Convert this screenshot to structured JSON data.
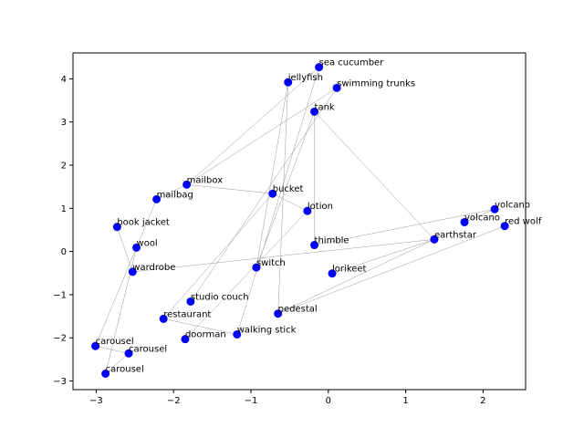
{
  "chart_data": {
    "type": "scatter",
    "title": "",
    "xlabel": "",
    "ylabel": "",
    "xlim": [
      -3.3,
      2.55
    ],
    "ylim": [
      -3.2,
      4.6
    ],
    "xticks": [
      -3,
      -2,
      -1,
      0,
      1,
      2
    ],
    "yticks": [
      -3,
      -2,
      -1,
      0,
      1,
      2,
      3,
      4
    ],
    "xtick_labels": [
      "−3",
      "−2",
      "−1",
      "0",
      "1",
      "2"
    ],
    "ytick_labels": [
      "−3",
      "−2",
      "−1",
      "0",
      "1",
      "2",
      "3",
      "4"
    ],
    "point_color": "#0000ff",
    "edge_color": "#999999",
    "points": [
      {
        "label": "sea cucumber",
        "x": -0.12,
        "y": 4.27
      },
      {
        "label": "jellyfish",
        "x": -0.52,
        "y": 3.92
      },
      {
        "label": "swimming trunks",
        "x": 0.11,
        "y": 3.79
      },
      {
        "label": "tank",
        "x": -0.18,
        "y": 3.24
      },
      {
        "label": "mailbox",
        "x": -1.83,
        "y": 1.55
      },
      {
        "label": "mailbag",
        "x": -2.22,
        "y": 1.21
      },
      {
        "label": "bucket",
        "x": -0.72,
        "y": 1.34
      },
      {
        "label": "lotion",
        "x": -0.27,
        "y": 0.94
      },
      {
        "label": "volcano",
        "x": 2.15,
        "y": 0.98
      },
      {
        "label": "volcano",
        "x": 1.76,
        "y": 0.68
      },
      {
        "label": "red wolf",
        "x": 2.28,
        "y": 0.59
      },
      {
        "label": "book jacket",
        "x": -2.73,
        "y": 0.57
      },
      {
        "label": "earthstar",
        "x": 1.37,
        "y": 0.28
      },
      {
        "label": "wool",
        "x": -2.48,
        "y": 0.09
      },
      {
        "label": "thimble",
        "x": -0.18,
        "y": 0.15
      },
      {
        "label": "wardrobe",
        "x": -2.53,
        "y": -0.47
      },
      {
        "label": "switch",
        "x": -0.93,
        "y": -0.37
      },
      {
        "label": "lorikeet",
        "x": 0.05,
        "y": -0.51
      },
      {
        "label": "studio couch",
        "x": -1.78,
        "y": -1.16
      },
      {
        "label": "pedestal",
        "x": -0.65,
        "y": -1.44
      },
      {
        "label": "restaurant",
        "x": -2.13,
        "y": -1.56
      },
      {
        "label": "walking stick",
        "x": -1.18,
        "y": -1.92
      },
      {
        "label": "doorman",
        "x": -1.85,
        "y": -2.03
      },
      {
        "label": "carousel",
        "x": -3.01,
        "y": -2.19
      },
      {
        "label": "carousel",
        "x": -2.58,
        "y": -2.36
      },
      {
        "label": "carousel",
        "x": -2.88,
        "y": -2.83
      }
    ],
    "edges": [
      [
        0,
        21
      ],
      [
        0,
        4
      ],
      [
        1,
        16
      ],
      [
        1,
        19
      ],
      [
        2,
        18
      ],
      [
        2,
        4
      ],
      [
        3,
        14
      ],
      [
        3,
        12
      ],
      [
        4,
        6
      ],
      [
        6,
        7
      ],
      [
        6,
        20
      ],
      [
        7,
        22
      ],
      [
        5,
        23
      ],
      [
        5,
        4
      ],
      [
        11,
        15
      ],
      [
        15,
        12
      ],
      [
        13,
        25
      ],
      [
        14,
        8
      ],
      [
        12,
        17
      ],
      [
        12,
        19
      ],
      [
        10,
        19
      ],
      [
        9,
        8
      ],
      [
        20,
        21
      ],
      [
        23,
        24
      ],
      [
        24,
        25
      ],
      [
        3,
        16
      ]
    ]
  }
}
